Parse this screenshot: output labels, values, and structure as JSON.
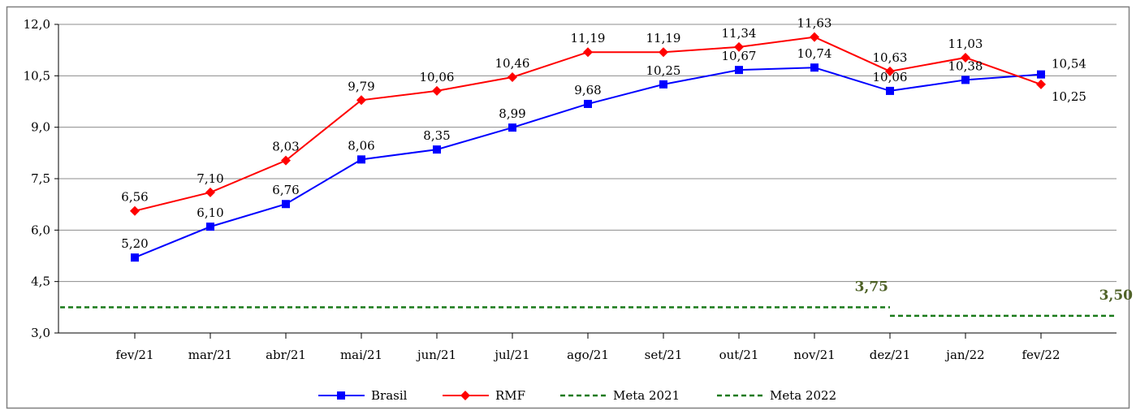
{
  "chart_data": {
    "type": "line",
    "categories": [
      "fev/21",
      "mar/21",
      "abr/21",
      "mai/21",
      "jun/21",
      "jul/21",
      "ago/21",
      "set/21",
      "out/21",
      "nov/21",
      "dez/21",
      "jan/22",
      "fev/22"
    ],
    "ylim": [
      3.0,
      12.0
    ],
    "yticks": [
      "3,0",
      "4,5",
      "6,0",
      "7,5",
      "9,0",
      "10,5",
      "12,0"
    ],
    "ytick_values": [
      3.0,
      4.5,
      6.0,
      7.5,
      9.0,
      10.5,
      12.0
    ],
    "grid": true,
    "legend_position": "bottom",
    "series": [
      {
        "name": "Brasil",
        "color": "#0000ff",
        "marker": "square",
        "values": [
          5.2,
          6.1,
          6.76,
          8.06,
          8.35,
          8.99,
          9.68,
          10.25,
          10.67,
          10.74,
          10.06,
          10.38,
          10.54
        ],
        "labels": [
          "5,20",
          "6,10",
          "6,76",
          "8,06",
          "8,35",
          "8,99",
          "9,68",
          "10,25",
          "10,67",
          "10,74",
          "10,06",
          "10,38",
          "10,54"
        ]
      },
      {
        "name": "RMF",
        "color": "#ff0000",
        "marker": "diamond",
        "values": [
          6.56,
          7.1,
          8.03,
          9.79,
          10.06,
          10.46,
          11.19,
          11.19,
          11.34,
          11.63,
          10.63,
          11.03,
          10.25
        ],
        "labels": [
          "6,56",
          "7,10",
          "8,03",
          "9,79",
          "10,06",
          "10,46",
          "11,19",
          "11,19",
          "11,34",
          "11,63",
          "10,63",
          "11,03",
          "10,25"
        ]
      }
    ],
    "targets": [
      {
        "name": "Meta 2021",
        "value": 3.75,
        "label": "3,75",
        "color": "#1a7a1a",
        "label_color": "#4f6228",
        "span": "through dez/21"
      },
      {
        "name": "Meta 2022",
        "value": 3.5,
        "label": "3,50",
        "color": "#1a7a1a",
        "label_color": "#4f6228",
        "span": "from dez/21"
      }
    ]
  }
}
